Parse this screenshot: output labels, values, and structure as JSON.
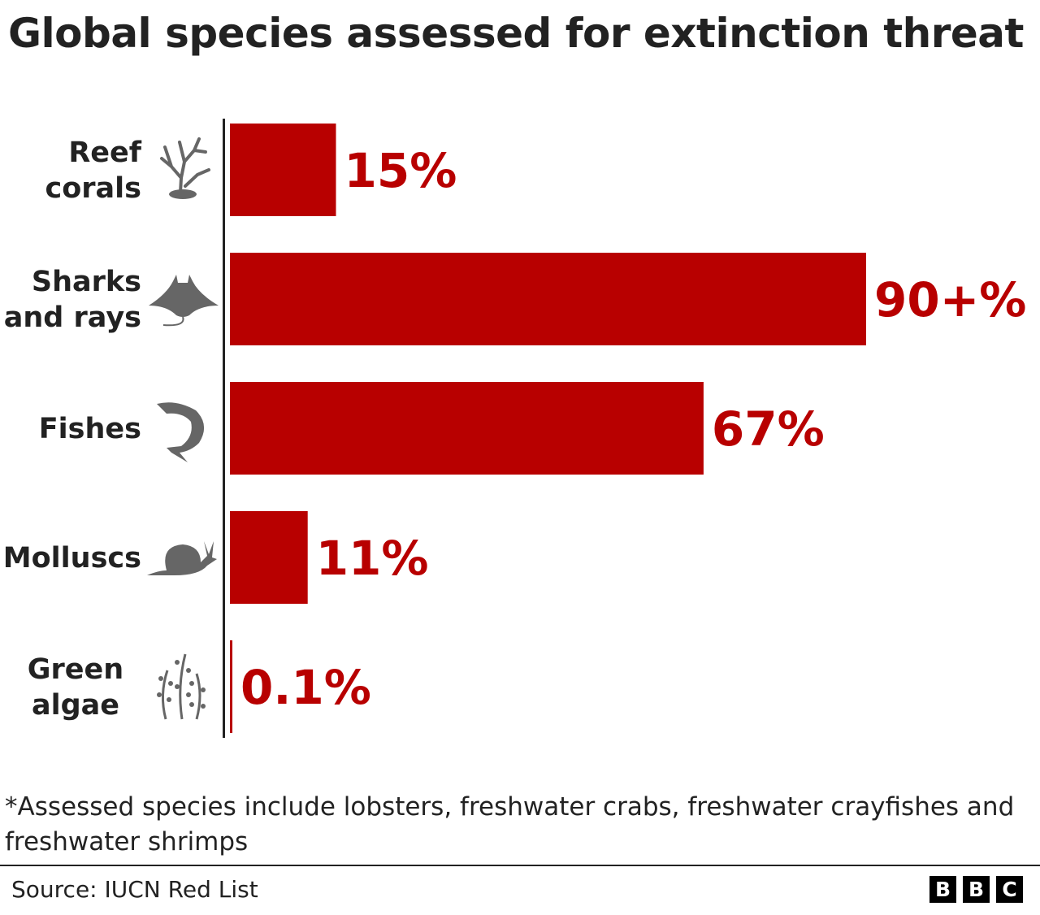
{
  "chart_data": {
    "type": "bar",
    "orientation": "horizontal",
    "title": "Global species assessed for extinction threat",
    "unit": "%",
    "xlim": [
      0,
      90
    ],
    "grid": false,
    "categories": [
      {
        "lines": [
          "Reef",
          "corals"
        ],
        "icon": "coral-icon"
      },
      {
        "lines": [
          "Sharks",
          "and rays"
        ],
        "icon": "manta-ray-icon"
      },
      {
        "lines": [
          "Fishes"
        ],
        "icon": "fish-icon"
      },
      {
        "lines": [
          "Molluscs"
        ],
        "icon": "snail-icon"
      },
      {
        "lines": [
          "Green",
          "algae"
        ],
        "icon": "seaweed-icon"
      }
    ],
    "values": [
      15,
      90,
      67,
      11,
      0.1
    ],
    "value_labels": [
      "15%",
      "90+%",
      "67%",
      "11%",
      "0.1%"
    ],
    "colors": {
      "bar": "#b80000",
      "label": "#b80000",
      "icon": "#666666",
      "axis": "#222222"
    }
  },
  "footnote": "*Assessed species include lobsters, freshwater crabs, freshwater crayfishes and freshwater shrimps",
  "source": "Source: IUCN Red List",
  "logo": [
    "B",
    "B",
    "C"
  ]
}
